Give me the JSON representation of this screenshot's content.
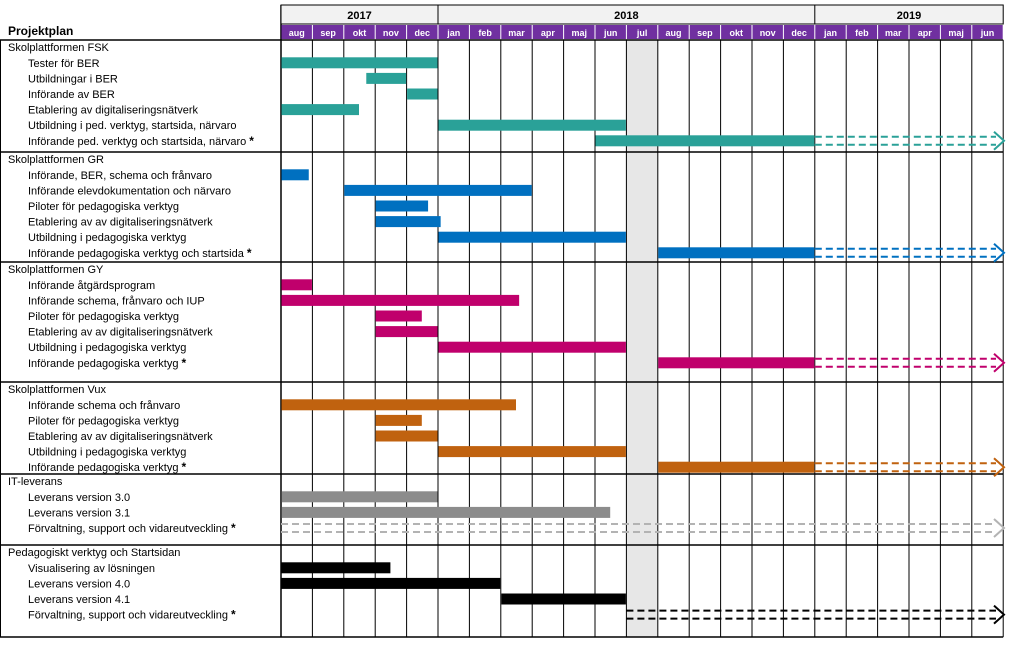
{
  "title": "Projektplan",
  "years": [
    {
      "label": "2017",
      "from": 0,
      "to": 5
    },
    {
      "label": "2018",
      "from": 5,
      "to": 17
    },
    {
      "label": "2019",
      "from": 17,
      "to": 23
    }
  ],
  "months": [
    "aug",
    "sep",
    "okt",
    "nov",
    "dec",
    "jan",
    "feb",
    "mar",
    "apr",
    "maj",
    "jun",
    "jul",
    "aug",
    "sep",
    "okt",
    "nov",
    "dec",
    "jan",
    "feb",
    "mar",
    "apr",
    "maj",
    "jun"
  ],
  "colors": {
    "header_bg": "#f2f2f2",
    "month_bg": "#7030a0",
    "highlight_column": "#e7e7e7",
    "grid": "#000000"
  },
  "highlight_month_index": 11,
  "star": "*",
  "sections": [
    {
      "title": "Skolplattformen FSK",
      "color": "#2aa198",
      "rows": [
        {
          "label": "Tester för BER",
          "bars": [
            [
              0,
              5
            ]
          ]
        },
        {
          "label": "Utbildningar i BER",
          "bars": [
            [
              2.7,
              4
            ]
          ]
        },
        {
          "label": "Införande av BER",
          "bars": [
            [
              4,
              5
            ]
          ]
        },
        {
          "label": "Etablering av digitaliseringsnätverk",
          "bars": [
            [
              0,
              2.5
            ]
          ]
        },
        {
          "label": "Utbildning i ped. verktyg, startsida, närvaro",
          "bars": [
            [
              5,
              11
            ]
          ]
        },
        {
          "label": "Införande ped. verktyg och startsida, närvaro",
          "star": true,
          "bars": [
            [
              10,
              17
            ]
          ],
          "arrow": true
        }
      ]
    },
    {
      "title": "Skolplattformen GR",
      "color": "#0070c0",
      "rows": [
        {
          "label": "Införande, BER, schema och frånvaro",
          "bars": [
            [
              0,
              0.9
            ]
          ]
        },
        {
          "label": "Införande elevdokumentation och närvaro",
          "bars": [
            [
              2,
              8
            ]
          ]
        },
        {
          "label": "Piloter för pedagogiska verktyg",
          "bars": [
            [
              3,
              4.7
            ]
          ]
        },
        {
          "label": "Etablering av av digitaliseringsnätverk",
          "bars": [
            [
              3,
              5.1
            ]
          ]
        },
        {
          "label": "Utbildning i pedagogiska verktyg",
          "bars": [
            [
              5,
              11
            ]
          ]
        },
        {
          "label": "Införande pedagogiska verktyg och startsida",
          "star": true,
          "bars": [
            [
              12,
              17
            ]
          ],
          "arrow": true
        }
      ]
    },
    {
      "title": "Skolplattformen GY",
      "color": "#c0006c",
      "rows": [
        {
          "label": "Införande åtgärdsprogram",
          "bars": [
            [
              0,
              1
            ]
          ]
        },
        {
          "label": "Införande schema, frånvaro och IUP",
          "bars": [
            [
              0,
              7.6
            ]
          ]
        },
        {
          "label": "Piloter för pedagogiska verktyg",
          "bars": [
            [
              3,
              4.5
            ]
          ]
        },
        {
          "label": "Etablering av av digitaliseringsnätverk",
          "bars": [
            [
              3,
              5
            ]
          ]
        },
        {
          "label": "Utbildning i pedagogiska verktyg",
          "bars": [
            [
              5,
              11
            ]
          ]
        },
        {
          "label": "Införande pedagogiska verktyg",
          "star": true,
          "bars": [
            [
              12,
              17
            ]
          ],
          "arrow": true
        }
      ]
    },
    {
      "title": "Skolplattformen Vux",
      "color": "#c0620f",
      "rows": [
        {
          "label": "Införande schema och frånvaro",
          "bars": [
            [
              0,
              7.5
            ]
          ]
        },
        {
          "label": "Piloter för pedagogiska verktyg",
          "bars": [
            [
              3,
              4.5
            ]
          ]
        },
        {
          "label": "Etablering av av digitaliseringsnätverk",
          "bars": [
            [
              3,
              5
            ]
          ]
        },
        {
          "label": "Utbildning i pedagogiska verktyg",
          "bars": [
            [
              5,
              11
            ]
          ]
        },
        {
          "label": "Införande pedagogiska verktyg",
          "star": true,
          "bars": [
            [
              12,
              17
            ]
          ],
          "arrow": true
        }
      ]
    },
    {
      "title": "IT-leverans",
      "color": "#8c8c8c",
      "rows": [
        {
          "label": "Leverans version 3.0",
          "bars": [
            [
              0,
              5
            ]
          ]
        },
        {
          "label": "Leverans version 3.1",
          "bars": [
            [
              0,
              10.5
            ]
          ]
        },
        {
          "label": "Förvaltning, support och vidareutveckling",
          "star": true,
          "bars": [],
          "arrow": true,
          "arrow_start": 0,
          "arrow_color": "#b3b3b3"
        }
      ]
    },
    {
      "title": "Pedagogiskt verktyg och Startsidan",
      "color": "#000000",
      "rows": [
        {
          "label": "Visualisering av lösningen",
          "bars": [
            [
              0,
              3.5
            ]
          ]
        },
        {
          "label": "Leverans version 4.0",
          "bars": [
            [
              0,
              7
            ]
          ]
        },
        {
          "label": "Leverans version 4.1",
          "bars": [
            [
              7,
              11
            ]
          ]
        },
        {
          "label": "Förvaltning, support och vidareutveckling",
          "star": true,
          "bars": [],
          "arrow": true,
          "arrow_start": 11,
          "arrow_color": "#000000"
        }
      ]
    }
  ]
}
